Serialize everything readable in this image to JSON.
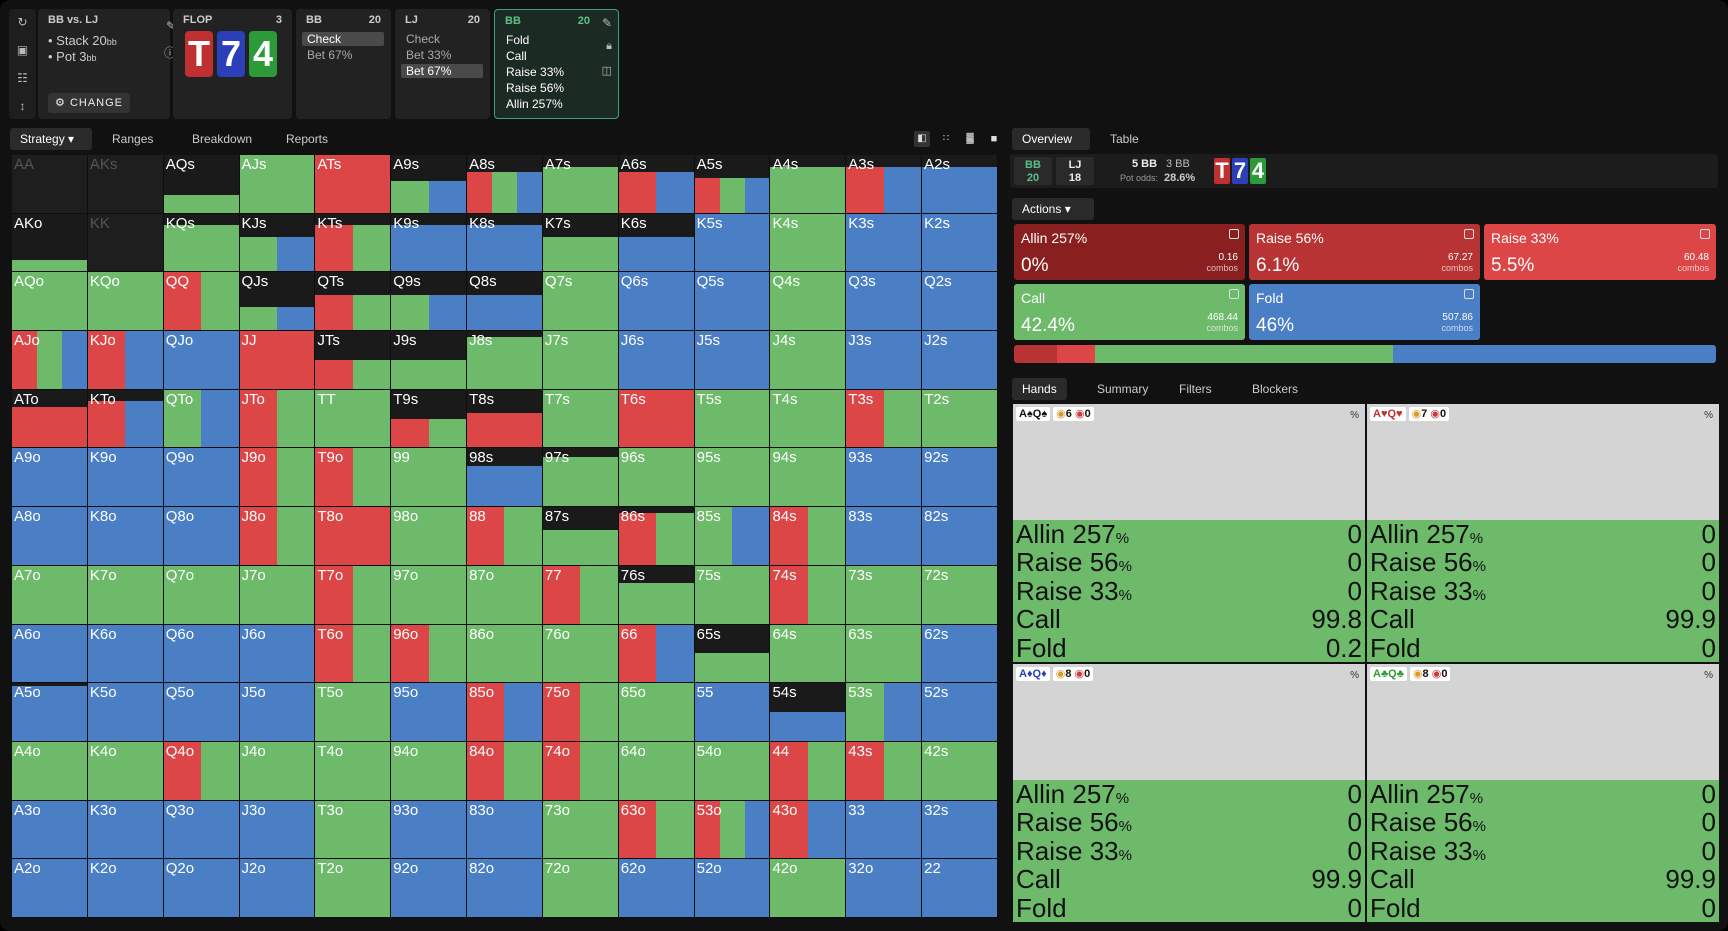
{
  "colors": {
    "green": "#6dba6a",
    "blue": "#4a7ec5",
    "red": "#dd4646",
    "darkred": "#8a1f1f",
    "black": "#1a1a1a",
    "faded": "#1e1e1e"
  },
  "scenario": {
    "title": "BB vs. LJ",
    "stack_label": "Stack 20",
    "stack_unit": "bb",
    "pot_label": "Pot 3",
    "pot_unit": "bb",
    "change_label": "CHANGE"
  },
  "flop": {
    "title": "FLOP",
    "count": "3",
    "cards": [
      "T",
      "7",
      "4"
    ]
  },
  "node_bb1": {
    "title": "BB",
    "stack": "20",
    "options": [
      "Check",
      "Bet 67%"
    ]
  },
  "node_lj": {
    "title": "LJ",
    "stack": "20",
    "options": [
      "Check",
      "Bet 33%",
      "Bet 67%"
    ]
  },
  "node_bb2": {
    "title": "BB",
    "stack": "20",
    "options": [
      "Fold",
      "Call",
      "Raise 33%",
      "Raise 56%",
      "Allin 257%"
    ]
  },
  "left_tabs": [
    "Strategy",
    "Ranges",
    "Breakdown",
    "Reports"
  ],
  "right_tabs": [
    "Overview",
    "Table"
  ],
  "overview": {
    "p1_name": "BB",
    "p1_stack": "20",
    "p2_name": "LJ",
    "p2_stack": "18",
    "pot_main": "5 BB",
    "pot_side": "3 BB",
    "pot_odds_label": "Pot odds:",
    "pot_odds": "28.6%",
    "cards": [
      "T",
      "7",
      "4"
    ]
  },
  "actions_label": "Actions",
  "actions": [
    {
      "name": "Allin 257%",
      "value": "0%",
      "combos": "0.16",
      "unit": "combos"
    },
    {
      "name": "Raise 56%",
      "value": "6.1%",
      "combos": "67.27",
      "unit": "combos"
    },
    {
      "name": "Raise 33%",
      "value": "5.5%",
      "combos": "60.48",
      "unit": "combos"
    },
    {
      "name": "Call",
      "value": "42.4%",
      "combos": "468.44",
      "unit": "combos"
    },
    {
      "name": "Fold",
      "value": "46%",
      "combos": "507.86",
      "unit": "combos"
    }
  ],
  "action_bar": [
    {
      "pct": 0.0
    },
    {
      "pct": 6.1
    },
    {
      "pct": 5.5
    },
    {
      "pct": 42.4
    },
    {
      "pct": 46.0
    }
  ],
  "hand_tabs": [
    "Hands",
    "Summary",
    "Filters",
    "Blockers"
  ],
  "hands": [
    {
      "cards": "A♠Q♠",
      "c1": "6",
      "c2": "0",
      "pct_label": "%",
      "rows": [
        {
          "n": "Allin 257",
          "v": "0"
        },
        {
          "n": "Raise 56",
          "v": "0"
        },
        {
          "n": "Raise 33",
          "v": "0"
        },
        {
          "n": "Call",
          "v": "99.8"
        },
        {
          "n": "Fold",
          "v": "0.2"
        }
      ]
    },
    {
      "cards": "A♥Q♥",
      "c1": "7",
      "c2": "0",
      "pct_label": "%",
      "rows": [
        {
          "n": "Allin 257",
          "v": "0"
        },
        {
          "n": "Raise 56",
          "v": "0"
        },
        {
          "n": "Raise 33",
          "v": "0"
        },
        {
          "n": "Call",
          "v": "99.9"
        },
        {
          "n": "Fold",
          "v": "0"
        }
      ]
    },
    {
      "cards": "A♦Q♦",
      "c1": "8",
      "c2": "0",
      "pct_label": "%",
      "rows": [
        {
          "n": "Allin 257",
          "v": "0"
        },
        {
          "n": "Raise 56",
          "v": "0"
        },
        {
          "n": "Raise 33",
          "v": "0"
        },
        {
          "n": "Call",
          "v": "99.9"
        },
        {
          "n": "Fold",
          "v": "0"
        }
      ]
    },
    {
      "cards": "A♣Q♣",
      "c1": "8",
      "c2": "0",
      "pct_label": "%",
      "rows": [
        {
          "n": "Allin 257",
          "v": "0"
        },
        {
          "n": "Raise 56",
          "v": "0"
        },
        {
          "n": "Raise 33",
          "v": "0"
        },
        {
          "n": "Call",
          "v": "99.9"
        },
        {
          "n": "Fold",
          "v": "0"
        }
      ]
    }
  ],
  "matrix": [
    [
      [
        "AA",
        "x"
      ],
      [
        "AKs",
        "x"
      ],
      [
        "AQs",
        "k70g"
      ],
      [
        "AJs",
        "g"
      ],
      [
        "ATs",
        "r"
      ],
      [
        "A9s",
        "k45gb"
      ],
      [
        "A8s",
        "k30rgb"
      ],
      [
        "A7s",
        "k20g"
      ],
      [
        "A6s",
        "k30rb"
      ],
      [
        "A5s",
        "k40rgb"
      ],
      [
        "A4s",
        "k20g"
      ],
      [
        "A3s",
        "k20rb"
      ],
      [
        "A2s",
        "k20b"
      ]
    ],
    [
      [
        "AKo",
        "k80g"
      ],
      [
        "KK",
        "x"
      ],
      [
        "KQs",
        "k20g"
      ],
      [
        "KJs",
        "k40gb"
      ],
      [
        "KTs",
        "k20rg"
      ],
      [
        "K9s",
        "k20b"
      ],
      [
        "K8s",
        "k20b"
      ],
      [
        "K7s",
        "k40g"
      ],
      [
        "K6s",
        "k40b"
      ],
      [
        "K5s",
        "b"
      ],
      [
        "K4s",
        "g"
      ],
      [
        "K3s",
        "b"
      ],
      [
        "K2s",
        "b"
      ]
    ],
    [
      [
        "AQo",
        "g"
      ],
      [
        "KQo",
        "g"
      ],
      [
        "QQ",
        "rg"
      ],
      [
        "QJs",
        "k60gb"
      ],
      [
        "QTs",
        "k40rg"
      ],
      [
        "Q9s",
        "k40gb"
      ],
      [
        "Q8s",
        "k40b"
      ],
      [
        "Q7s",
        "g"
      ],
      [
        "Q6s",
        "b"
      ],
      [
        "Q5s",
        "b"
      ],
      [
        "Q4s",
        "g"
      ],
      [
        "Q3s",
        "b"
      ],
      [
        "Q2s",
        "b"
      ]
    ],
    [
      [
        "AJo",
        "rgb"
      ],
      [
        "KJo",
        "rb"
      ],
      [
        "QJo",
        "b"
      ],
      [
        "JJ",
        "r"
      ],
      [
        "JTs",
        "k50rg"
      ],
      [
        "J9s",
        "k50g"
      ],
      [
        "J8s",
        "k10g"
      ],
      [
        "J7s",
        "g"
      ],
      [
        "J6s",
        "b"
      ],
      [
        "J5s",
        "b"
      ],
      [
        "J4s",
        "g"
      ],
      [
        "J3s",
        "b"
      ],
      [
        "J2s",
        "b"
      ]
    ],
    [
      [
        "ATo",
        "k30r"
      ],
      [
        "KTo",
        "k20rb"
      ],
      [
        "QTo",
        "gb"
      ],
      [
        "JTo",
        "rg"
      ],
      [
        "TT",
        "g"
      ],
      [
        "T9s",
        "k50rg"
      ],
      [
        "T8s",
        "k40r"
      ],
      [
        "T7s",
        "g"
      ],
      [
        "T6s",
        "r"
      ],
      [
        "T5s",
        "g"
      ],
      [
        "T4s",
        "g"
      ],
      [
        "T3s",
        "rg"
      ],
      [
        "T2s",
        "g"
      ]
    ],
    [
      [
        "A9o",
        "b"
      ],
      [
        "K9o",
        "b"
      ],
      [
        "Q9o",
        "b"
      ],
      [
        "J9o",
        "rg"
      ],
      [
        "T9o",
        "rg"
      ],
      [
        "99",
        "g"
      ],
      [
        "98s",
        "k30b"
      ],
      [
        "97s",
        "k15g"
      ],
      [
        "96s",
        "g"
      ],
      [
        "95s",
        "g"
      ],
      [
        "94s",
        "g"
      ],
      [
        "93s",
        "b"
      ],
      [
        "92s",
        "b"
      ]
    ],
    [
      [
        "A8o",
        "b"
      ],
      [
        "K8o",
        "b"
      ],
      [
        "Q8o",
        "b"
      ],
      [
        "J8o",
        "rg"
      ],
      [
        "T8o",
        "r"
      ],
      [
        "98o",
        "g"
      ],
      [
        "88",
        "rg"
      ],
      [
        "87s",
        "k40g"
      ],
      [
        "86s",
        "k10rg"
      ],
      [
        "85s",
        "gb"
      ],
      [
        "84s",
        "rg"
      ],
      [
        "83s",
        "b"
      ],
      [
        "82s",
        "b"
      ]
    ],
    [
      [
        "A7o",
        "g"
      ],
      [
        "K7o",
        "g"
      ],
      [
        "Q7o",
        "g"
      ],
      [
        "J7o",
        "g"
      ],
      [
        "T7o",
        "rg"
      ],
      [
        "97o",
        "g"
      ],
      [
        "87o",
        "g"
      ],
      [
        "77",
        "rg"
      ],
      [
        "76s",
        "k30g"
      ],
      [
        "75s",
        "g"
      ],
      [
        "74s",
        "rg"
      ],
      [
        "73s",
        "g"
      ],
      [
        "72s",
        "g"
      ]
    ],
    [
      [
        "A6o",
        "b"
      ],
      [
        "K6o",
        "b"
      ],
      [
        "Q6o",
        "b"
      ],
      [
        "J6o",
        "b"
      ],
      [
        "T6o",
        "rg"
      ],
      [
        "96o",
        "rg"
      ],
      [
        "86o",
        "g"
      ],
      [
        "76o",
        "g"
      ],
      [
        "66",
        "rb"
      ],
      [
        "65s",
        "k50g"
      ],
      [
        "64s",
        "g"
      ],
      [
        "63s",
        "g"
      ],
      [
        "62s",
        "b"
      ]
    ],
    [
      [
        "A5o",
        "k5b"
      ],
      [
        "K5o",
        "b"
      ],
      [
        "Q5o",
        "b"
      ],
      [
        "J5o",
        "b"
      ],
      [
        "T5o",
        "g"
      ],
      [
        "95o",
        "b"
      ],
      [
        "85o",
        "rb"
      ],
      [
        "75o",
        "rg"
      ],
      [
        "65o",
        "g"
      ],
      [
        "55",
        "b"
      ],
      [
        "54s",
        "k50b"
      ],
      [
        "53s",
        "gb"
      ],
      [
        "52s",
        "b"
      ]
    ],
    [
      [
        "A4o",
        "g"
      ],
      [
        "K4o",
        "g"
      ],
      [
        "Q4o",
        "rg"
      ],
      [
        "J4o",
        "g"
      ],
      [
        "T4o",
        "g"
      ],
      [
        "94o",
        "g"
      ],
      [
        "84o",
        "rg"
      ],
      [
        "74o",
        "rg"
      ],
      [
        "64o",
        "g"
      ],
      [
        "54o",
        "g"
      ],
      [
        "44",
        "rg"
      ],
      [
        "43s",
        "rg"
      ],
      [
        "42s",
        "g"
      ]
    ],
    [
      [
        "A3o",
        "b"
      ],
      [
        "K3o",
        "b"
      ],
      [
        "Q3o",
        "b"
      ],
      [
        "J3o",
        "b"
      ],
      [
        "T3o",
        "g"
      ],
      [
        "93o",
        "b"
      ],
      [
        "83o",
        "b"
      ],
      [
        "73o",
        "g"
      ],
      [
        "63o",
        "rg"
      ],
      [
        "53o",
        "rgb"
      ],
      [
        "43o",
        "rb"
      ],
      [
        "33",
        "b"
      ],
      [
        "32s",
        "b"
      ]
    ],
    [
      [
        "A2o",
        "b"
      ],
      [
        "K2o",
        "b"
      ],
      [
        "Q2o",
        "b"
      ],
      [
        "J2o",
        "b"
      ],
      [
        "T2o",
        "g"
      ],
      [
        "92o",
        "b"
      ],
      [
        "82o",
        "b"
      ],
      [
        "72o",
        "g"
      ],
      [
        "62o",
        "b"
      ],
      [
        "52o",
        "b"
      ],
      [
        "42o",
        "g"
      ],
      [
        "32o",
        "b"
      ],
      [
        "22",
        "b"
      ]
    ]
  ]
}
